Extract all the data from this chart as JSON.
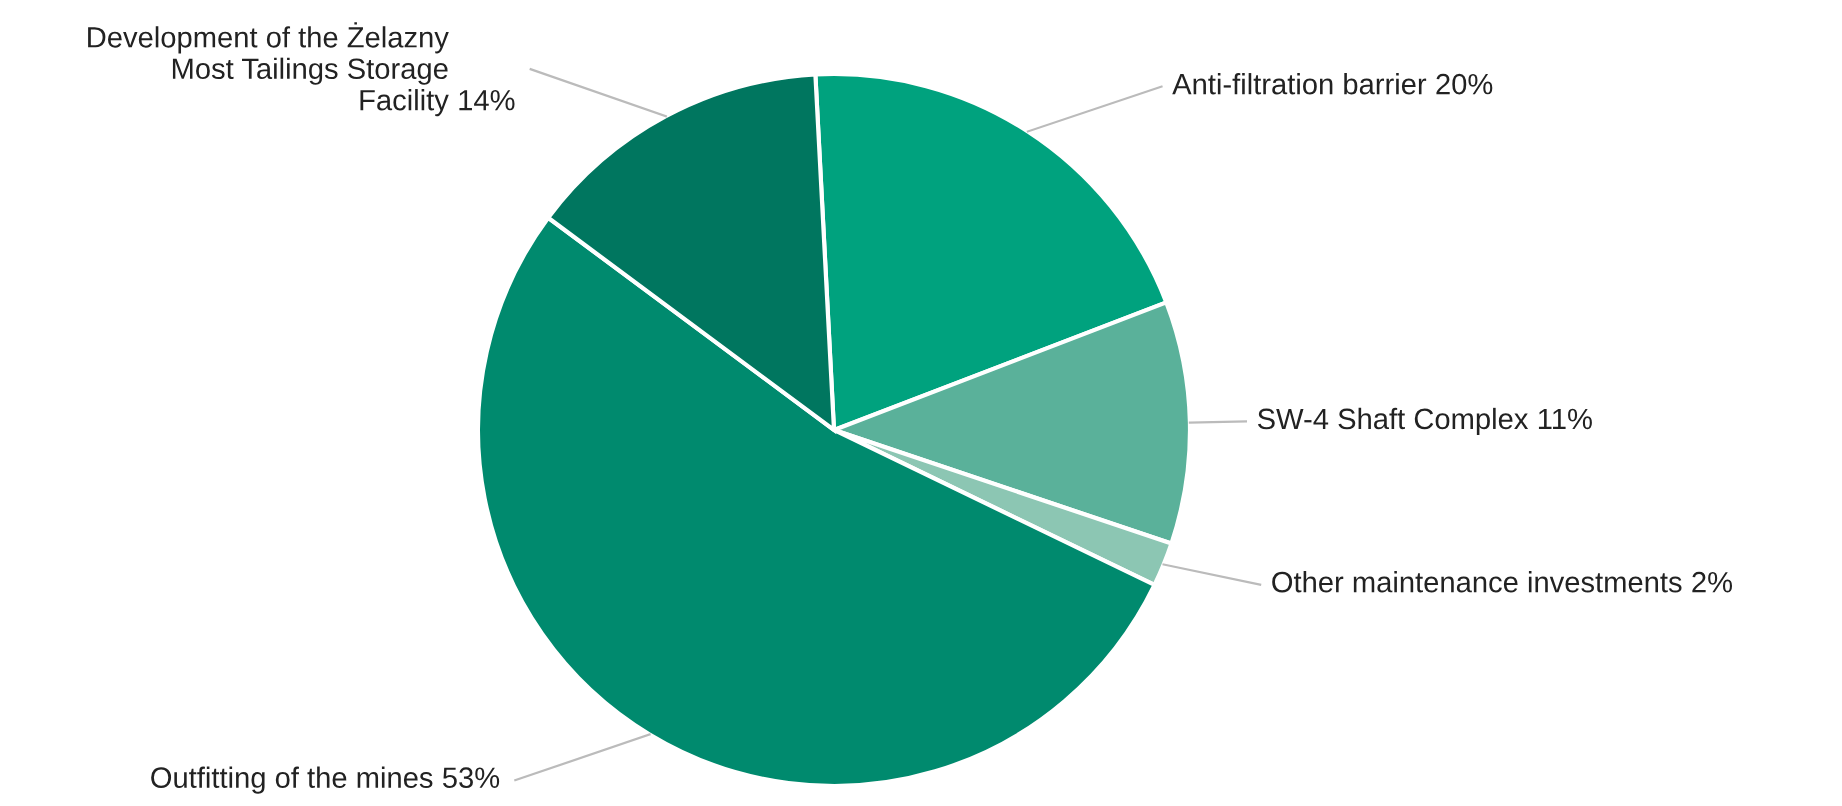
{
  "chart_data": {
    "type": "pie",
    "categories": [
      "Anti-filtration barrier",
      "SW-4 Shaft Complex",
      "Other maintenance investments",
      "Outfitting of the mines",
      "Development of the Żelazny\nMost Tailings Storage\nFacility"
    ],
    "values": [
      20,
      11,
      2,
      53,
      14
    ],
    "colors": [
      "#00a27e",
      "#5ab19a",
      "#8cc6b3",
      "#008a6e",
      "#00765f"
    ],
    "value_labels": [
      "20%",
      "11%",
      "2%",
      "53%",
      "14%"
    ]
  }
}
